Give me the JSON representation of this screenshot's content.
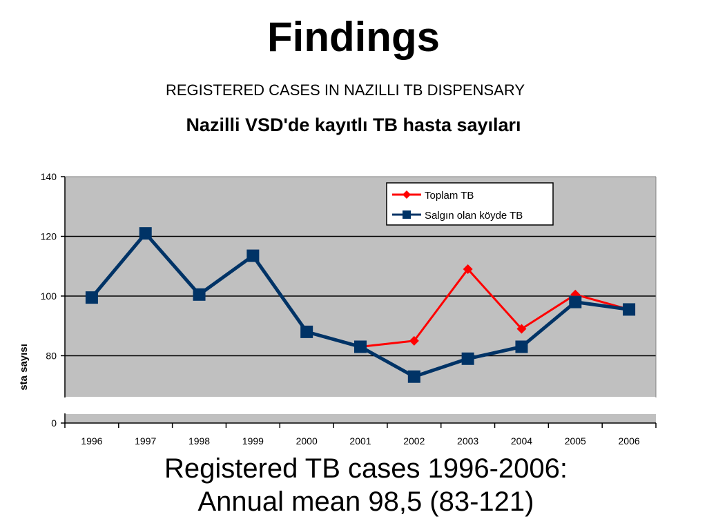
{
  "slide": {
    "title": "Findings",
    "subtitle": "REGISTERED CASES IN NAZILLI TB DISPENSARY",
    "caption_line1": "Registered TB cases 1996-2006:",
    "caption_line2": "Annual mean 98,5 (83-121)"
  },
  "chart_data": {
    "type": "line",
    "title": "Nazilli VSD'de kayıtlı TB hasta sayıları",
    "ylabel": "sta sayısı",
    "xlabel": "",
    "categories": [
      "1996",
      "1997",
      "1998",
      "1999",
      "2000",
      "2001",
      "2002",
      "2003",
      "2004",
      "2005",
      "2006"
    ],
    "y_ticks": [
      0,
      80,
      100,
      120,
      140
    ],
    "ylim": [
      0,
      140
    ],
    "axis_break": [
      66,
      76
    ],
    "grid": true,
    "legend_position": "top-right",
    "plot_background": "#c0c0c0",
    "series": [
      {
        "name": "Toplam TB",
        "color": "#ff0000",
        "marker": "diamond",
        "values": [
          null,
          null,
          null,
          null,
          null,
          83,
          85,
          109,
          89,
          100.5,
          95.5
        ]
      },
      {
        "name": "Salgın olan köyde TB",
        "color": "#003366",
        "marker": "square",
        "values": [
          99.5,
          121,
          100.5,
          113.5,
          88,
          83,
          73,
          79,
          83,
          98,
          95.5
        ]
      }
    ]
  }
}
